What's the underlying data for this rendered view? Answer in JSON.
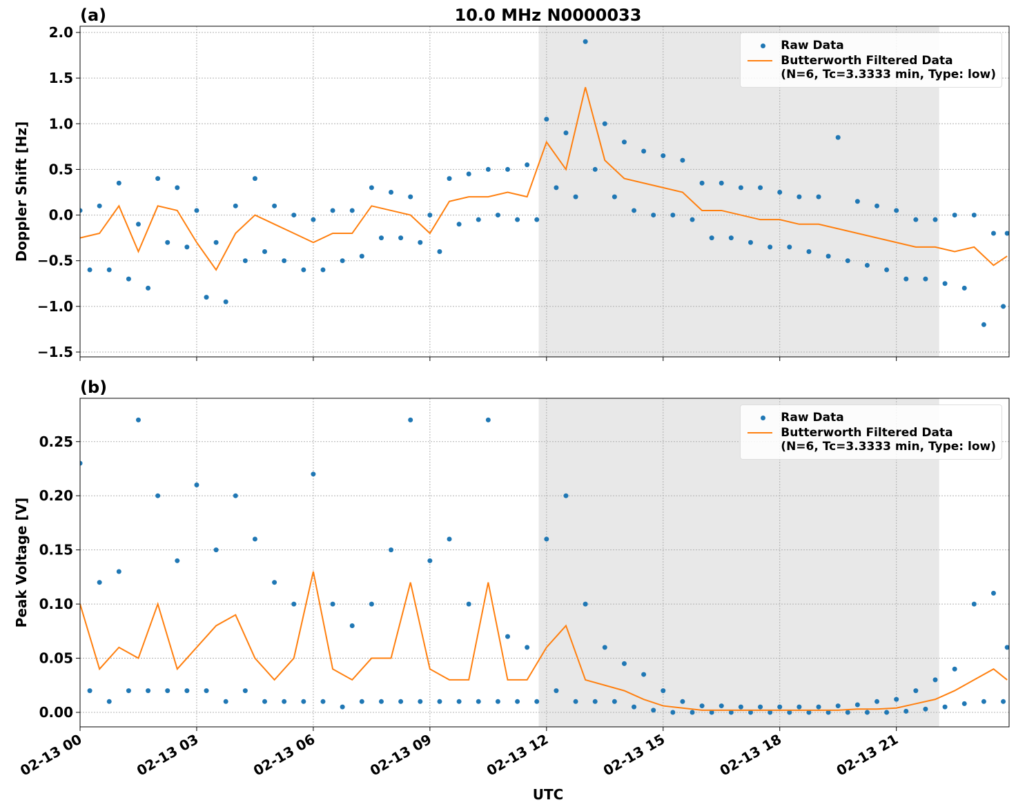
{
  "chart_data": [
    {
      "type": "line",
      "panel_label": "(a)",
      "title": "10.0 MHz N0000033",
      "ylabel": "Doppler Shift [Hz]",
      "xlim": [
        0,
        23.9
      ],
      "ylim": [
        -1.553,
        2.068
      ],
      "xticks": [
        0,
        3,
        6,
        9,
        12,
        15,
        18,
        21
      ],
      "yticks": [
        {
          "value": -1.5,
          "label": "−1.5"
        },
        {
          "value": -1.0,
          "label": "−1.0"
        },
        {
          "value": -0.5,
          "label": "−0.5"
        },
        {
          "value": 0.0,
          "label": "0.0"
        },
        {
          "value": 0.5,
          "label": "0.5"
        },
        {
          "value": 1.0,
          "label": "1.0"
        },
        {
          "value": 1.5,
          "label": "1.5"
        },
        {
          "value": 2.0,
          "label": "2.0"
        }
      ],
      "grid": true,
      "shaded_span": [
        11.8,
        22.1
      ],
      "legend": "upper right",
      "series": [
        {
          "name": "Raw Data",
          "color": "#1f77b4",
          "style": "markers",
          "x": [
            0,
            0.25,
            0.5,
            0.75,
            1,
            1.25,
            1.5,
            1.75,
            2,
            2.25,
            2.5,
            2.75,
            3,
            3.25,
            3.5,
            3.75,
            4,
            4.25,
            4.5,
            4.75,
            5,
            5.25,
            5.5,
            5.75,
            6,
            6.25,
            6.5,
            6.75,
            7,
            7.25,
            7.5,
            7.75,
            8,
            8.25,
            8.5,
            8.75,
            9,
            9.25,
            9.5,
            9.75,
            10,
            10.25,
            10.5,
            10.75,
            11,
            11.25,
            11.5,
            11.75,
            12,
            12.25,
            12.5,
            12.75,
            13,
            13.25,
            13.5,
            13.75,
            14,
            14.25,
            14.5,
            14.75,
            15,
            15.25,
            15.5,
            15.75,
            16,
            16.25,
            16.5,
            16.75,
            17,
            17.25,
            17.5,
            17.75,
            18,
            18.25,
            18.5,
            18.75,
            19,
            19.25,
            19.5,
            19.75,
            20,
            20.25,
            20.5,
            20.75,
            21,
            21.25,
            21.5,
            21.75,
            22,
            22.25,
            22.5,
            22.75,
            23,
            23.25,
            23.5,
            23.75,
            23.85
          ],
          "values": [
            0.05,
            -0.6,
            0.1,
            -0.6,
            0.35,
            -0.7,
            -0.1,
            -0.8,
            0.4,
            -0.3,
            0.3,
            -0.35,
            0.05,
            -0.9,
            -0.3,
            -0.95,
            0.1,
            -0.5,
            0.4,
            -0.4,
            0.1,
            -0.5,
            0.0,
            -0.6,
            -0.05,
            -0.6,
            0.05,
            -0.5,
            0.05,
            -0.45,
            0.3,
            -0.25,
            0.25,
            -0.25,
            0.2,
            -0.3,
            0.0,
            -0.4,
            0.4,
            -0.1,
            0.45,
            -0.05,
            0.5,
            0.0,
            0.5,
            -0.05,
            0.55,
            -0.05,
            1.05,
            0.3,
            0.9,
            0.2,
            1.9,
            0.5,
            1.0,
            0.2,
            0.8,
            0.05,
            0.7,
            0.0,
            0.65,
            0.0,
            0.6,
            -0.05,
            0.35,
            -0.25,
            0.35,
            -0.25,
            0.3,
            -0.3,
            0.3,
            -0.35,
            0.25,
            -0.35,
            0.2,
            -0.4,
            0.2,
            -0.45,
            0.85,
            -0.5,
            0.15,
            -0.55,
            0.1,
            -0.6,
            0.05,
            -0.7,
            -0.05,
            -0.7,
            -0.05,
            -0.75,
            0.0,
            -0.8,
            0.0,
            -1.2,
            -0.2,
            -1.0,
            -0.2
          ]
        },
        {
          "name": "Butterworth Filtered Data\n(N=6, Tc=3.3333 min, Type: low)",
          "color": "#ff7f0e",
          "style": "line",
          "x": [
            0,
            0.5,
            1,
            1.5,
            2,
            2.5,
            3,
            3.5,
            4,
            4.5,
            5,
            5.5,
            6,
            6.5,
            7,
            7.5,
            8,
            8.5,
            9,
            9.5,
            10,
            10.5,
            11,
            11.5,
            12,
            12.5,
            13,
            13.5,
            14,
            14.5,
            15,
            15.5,
            16,
            16.5,
            17,
            17.5,
            18,
            18.5,
            19,
            19.5,
            20,
            20.5,
            21,
            21.5,
            22,
            22.5,
            23,
            23.5,
            23.85
          ],
          "values": [
            -0.25,
            -0.2,
            0.1,
            -0.4,
            0.1,
            0.05,
            -0.3,
            -0.6,
            -0.2,
            0.0,
            -0.1,
            -0.2,
            -0.3,
            -0.2,
            -0.2,
            0.1,
            0.05,
            0.0,
            -0.2,
            0.15,
            0.2,
            0.2,
            0.25,
            0.2,
            0.8,
            0.5,
            1.4,
            0.6,
            0.4,
            0.35,
            0.3,
            0.25,
            0.05,
            0.05,
            0.0,
            -0.05,
            -0.05,
            -0.1,
            -0.1,
            -0.15,
            -0.2,
            -0.25,
            -0.3,
            -0.35,
            -0.35,
            -0.4,
            -0.35,
            -0.55,
            -0.45
          ]
        }
      ]
    },
    {
      "type": "line",
      "panel_label": "(b)",
      "ylabel": "Peak Voltage [V]",
      "xlabel": "UTC",
      "xlim": [
        0,
        23.9
      ],
      "ylim": [
        -0.0134,
        0.29
      ],
      "xticks": [
        {
          "value": 0,
          "label": "02-13 00"
        },
        {
          "value": 3,
          "label": "02-13 03"
        },
        {
          "value": 6,
          "label": "02-13 06"
        },
        {
          "value": 9,
          "label": "02-13 09"
        },
        {
          "value": 12,
          "label": "02-13 12"
        },
        {
          "value": 15,
          "label": "02-13 15"
        },
        {
          "value": 18,
          "label": "02-13 18"
        },
        {
          "value": 21,
          "label": "02-13 21"
        }
      ],
      "yticks": [
        {
          "value": 0.0,
          "label": "0.00"
        },
        {
          "value": 0.05,
          "label": "0.05"
        },
        {
          "value": 0.1,
          "label": "0.10"
        },
        {
          "value": 0.15,
          "label": "0.15"
        },
        {
          "value": 0.2,
          "label": "0.20"
        },
        {
          "value": 0.25,
          "label": "0.25"
        }
      ],
      "grid": true,
      "shaded_span": [
        11.8,
        22.1
      ],
      "legend": "upper right",
      "series": [
        {
          "name": "Raw Data",
          "color": "#1f77b4",
          "style": "markers",
          "x": [
            0,
            0.25,
            0.5,
            0.75,
            1,
            1.25,
            1.5,
            1.75,
            2,
            2.25,
            2.5,
            2.75,
            3,
            3.25,
            3.5,
            3.75,
            4,
            4.25,
            4.5,
            4.75,
            5,
            5.25,
            5.5,
            5.75,
            6,
            6.25,
            6.5,
            6.75,
            7,
            7.25,
            7.5,
            7.75,
            8,
            8.25,
            8.5,
            8.75,
            9,
            9.25,
            9.5,
            9.75,
            10,
            10.25,
            10.5,
            10.75,
            11,
            11.25,
            11.5,
            11.75,
            12,
            12.25,
            12.5,
            12.75,
            13,
            13.25,
            13.5,
            13.75,
            14,
            14.25,
            14.5,
            14.75,
            15,
            15.25,
            15.5,
            15.75,
            16,
            16.25,
            16.5,
            16.75,
            17,
            17.25,
            17.5,
            17.75,
            18,
            18.25,
            18.5,
            18.75,
            19,
            19.25,
            19.5,
            19.75,
            20,
            20.25,
            20.5,
            20.75,
            21,
            21.25,
            21.5,
            21.75,
            22,
            22.25,
            22.5,
            22.75,
            23,
            23.25,
            23.5,
            23.75,
            23.85
          ],
          "values": [
            0.23,
            0.02,
            0.12,
            0.01,
            0.13,
            0.02,
            0.27,
            0.02,
            0.2,
            0.02,
            0.14,
            0.02,
            0.21,
            0.02,
            0.15,
            0.01,
            0.2,
            0.02,
            0.16,
            0.01,
            0.12,
            0.01,
            0.1,
            0.01,
            0.22,
            0.01,
            0.1,
            0.005,
            0.08,
            0.01,
            0.1,
            0.01,
            0.15,
            0.01,
            0.27,
            0.01,
            0.14,
            0.01,
            0.16,
            0.01,
            0.1,
            0.01,
            0.27,
            0.01,
            0.07,
            0.01,
            0.06,
            0.01,
            0.16,
            0.02,
            0.2,
            0.01,
            0.1,
            0.01,
            0.06,
            0.01,
            0.045,
            0.005,
            0.035,
            0.002,
            0.02,
            0.0,
            0.01,
            0.0,
            0.006,
            0.0,
            0.006,
            0.0,
            0.005,
            0.0,
            0.005,
            0.0,
            0.005,
            0.0,
            0.005,
            0.0,
            0.005,
            0.0,
            0.006,
            0.0,
            0.007,
            0.0,
            0.01,
            0.0,
            0.012,
            0.001,
            0.02,
            0.003,
            0.03,
            0.005,
            0.04,
            0.008,
            0.1,
            0.01,
            0.11,
            0.01,
            0.06
          ]
        },
        {
          "name": "Butterworth Filtered Data\n(N=6, Tc=3.3333 min, Type: low)",
          "color": "#ff7f0e",
          "style": "line",
          "x": [
            0,
            0.5,
            1,
            1.5,
            2,
            2.5,
            3,
            3.5,
            4,
            4.5,
            5,
            5.5,
            6,
            6.5,
            7,
            7.5,
            8,
            8.5,
            9,
            9.5,
            10,
            10.5,
            11,
            11.5,
            12,
            12.5,
            13,
            13.5,
            14,
            14.5,
            15,
            15.5,
            16,
            16.5,
            17,
            17.5,
            18,
            18.5,
            19,
            19.5,
            20,
            20.5,
            21,
            21.5,
            22,
            22.5,
            23,
            23.5,
            23.85
          ],
          "values": [
            0.1,
            0.04,
            0.06,
            0.05,
            0.1,
            0.04,
            0.06,
            0.08,
            0.09,
            0.05,
            0.03,
            0.05,
            0.13,
            0.04,
            0.03,
            0.05,
            0.05,
            0.12,
            0.04,
            0.03,
            0.03,
            0.12,
            0.03,
            0.03,
            0.06,
            0.08,
            0.03,
            0.025,
            0.02,
            0.012,
            0.006,
            0.004,
            0.002,
            0.002,
            0.002,
            0.002,
            0.002,
            0.002,
            0.002,
            0.002,
            0.003,
            0.003,
            0.004,
            0.008,
            0.012,
            0.02,
            0.03,
            0.04,
            0.03
          ]
        }
      ]
    }
  ]
}
